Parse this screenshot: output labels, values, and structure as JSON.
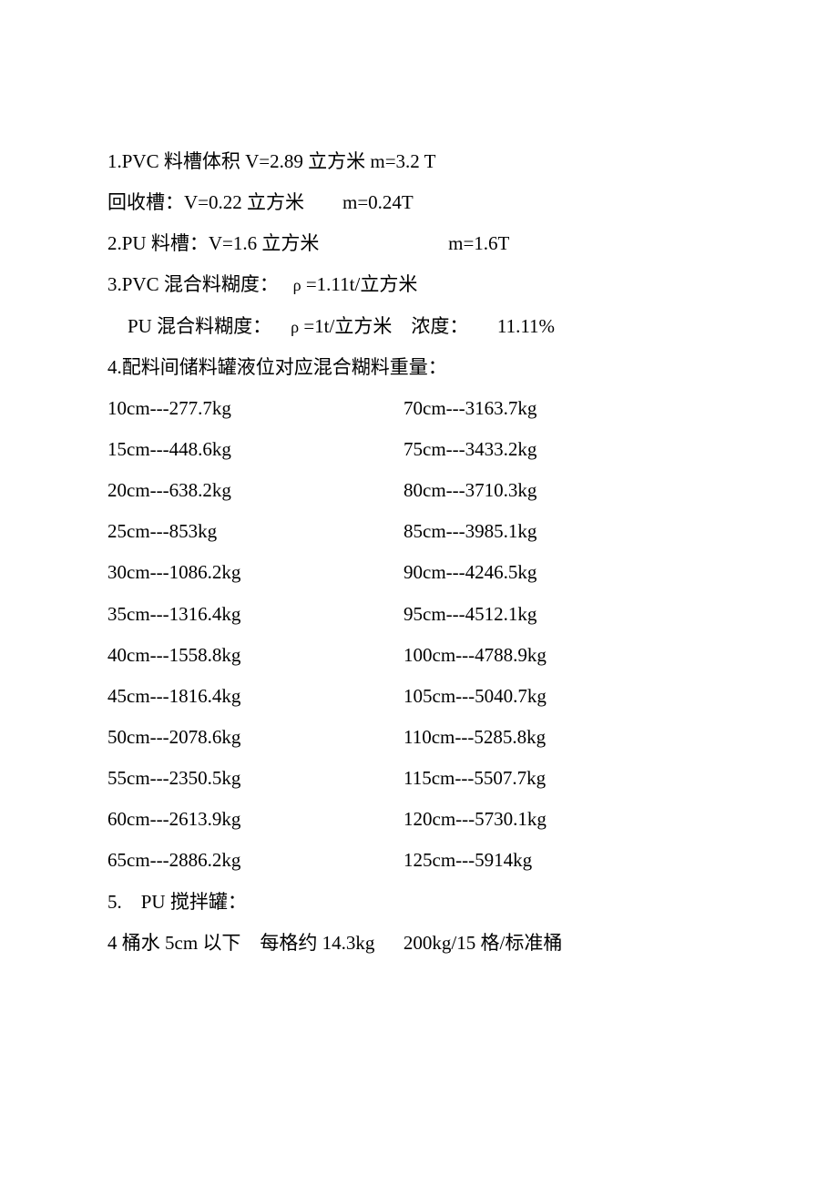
{
  "lines": {
    "l1": "1.PVC 料槽体积 V=2.89 立方米 m=3.2 T",
    "l2": "回收槽：V=0.22 立方米        m=0.24T",
    "l3a": "2.PU 料槽：V=1.6 立方米",
    "l3b": "m=1.6T",
    "l4a": "3.PVC 混合料糊度：   ",
    "l4b": "ρ",
    "l4c": " =1.11t/立方米",
    "l5a": "PU 混合料糊度：    ",
    "l5b": "ρ",
    "l5c": " =1t/立方米    浓度：      11.11%",
    "l6": "4.配料间储料罐液位对应混合糊料重量：",
    "l7": "5.    PU 搅拌罐：",
    "l8": "4 桶水 5cm 以下    每格约 14.3kg      200kg/15 格/标准桶"
  },
  "table": {
    "left": [
      "10cm---277.7kg",
      "15cm---448.6kg",
      "20cm---638.2kg",
      "25cm---853kg",
      "30cm---1086.2kg",
      "35cm---1316.4kg",
      "40cm---1558.8kg",
      "45cm---1816.4kg",
      "50cm---2078.6kg",
      "55cm---2350.5kg",
      "60cm---2613.9kg",
      "65cm---2886.2kg"
    ],
    "right": [
      "70cm---3163.7kg",
      "75cm---3433.2kg",
      "80cm---3710.3kg",
      "85cm---3985.1kg",
      "90cm---4246.5kg",
      "95cm---4512.1kg",
      "100cm---4788.9kg",
      "105cm---5040.7kg",
      "110cm---5285.8kg",
      "115cm---5507.7kg",
      "120cm---5730.1kg",
      "125cm---5914kg"
    ]
  }
}
